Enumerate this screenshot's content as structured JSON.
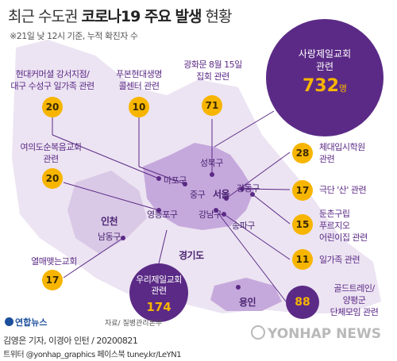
{
  "header": {
    "title_prefix": "최근 수도권 ",
    "title_bold": "코로나19 주요 발생",
    "title_suffix": " 현황",
    "subtitle": "※21일 낮 12시 기준, 누적 확진자 수"
  },
  "clusters": [
    {
      "id": "hyundai",
      "label_lines": [
        "현대커머셜 강서지점/",
        "대구 수성구 일가족 관련"
      ],
      "count": "20"
    },
    {
      "id": "pubon",
      "label_lines": [
        "푸본현대생명",
        "콜센터 관련"
      ],
      "count": "10"
    },
    {
      "id": "gwanghwamun",
      "label_lines": [
        "광화문 8월 15일",
        "집회 관련"
      ],
      "count": "71"
    },
    {
      "id": "sarang",
      "label_lines": [
        "사랑제일교회",
        "관련"
      ],
      "count": "732",
      "unit": "명"
    },
    {
      "id": "yeouido",
      "label_lines": [
        "여의도순복음교회",
        "관련"
      ],
      "count": "20"
    },
    {
      "id": "gym",
      "label_lines": [
        "체대입시학원",
        "관련"
      ],
      "count": "28"
    },
    {
      "id": "theater",
      "label_lines": [
        "극단 '산' 관련"
      ],
      "count": "17"
    },
    {
      "id": "daycare",
      "label_lines": [
        "둔촌구립",
        "푸르지오",
        "어린이집 관련"
      ],
      "count": "15"
    },
    {
      "id": "family",
      "label_lines": [
        "일가족 관련"
      ],
      "count": "11"
    },
    {
      "id": "yeolmae",
      "label_lines": [
        "열매맺는교회"
      ],
      "count": "17"
    },
    {
      "id": "woori",
      "label_lines": [
        "우리제일교회",
        "관련"
      ],
      "count": "174"
    },
    {
      "id": "golden",
      "label_lines": [
        "골드트레인/",
        "양평군",
        "단체모임 관련"
      ],
      "count": "88"
    }
  ],
  "districts": {
    "seongbuk": "성북구",
    "mapo": "마포구",
    "jung": "중구",
    "seoul": "서울",
    "gangdong": "강동구",
    "yeongdeungpo": "영등포구",
    "gangnam": "강남구",
    "songpa": "송파구",
    "incheon": "인천",
    "namdong": "남동구",
    "gyeonggi": "경기도",
    "yongin": "용인"
  },
  "footer": {
    "logo": "연합뉴스",
    "source": "자료/ 질병관리본부",
    "credit1": "김영은 기자, 이경아 인턴 / 20200821",
    "credit2": "트위터 @yonhap_graphics  페이스북 tuney.kr/LeYN1",
    "watermark": "YONHAP NEWS"
  },
  "colors": {
    "accent_purple": "#5b2a86",
    "badge_yellow": "#f7b500",
    "region_light": "#ddd0e8",
    "region_seoul": "#c6a9dc"
  }
}
